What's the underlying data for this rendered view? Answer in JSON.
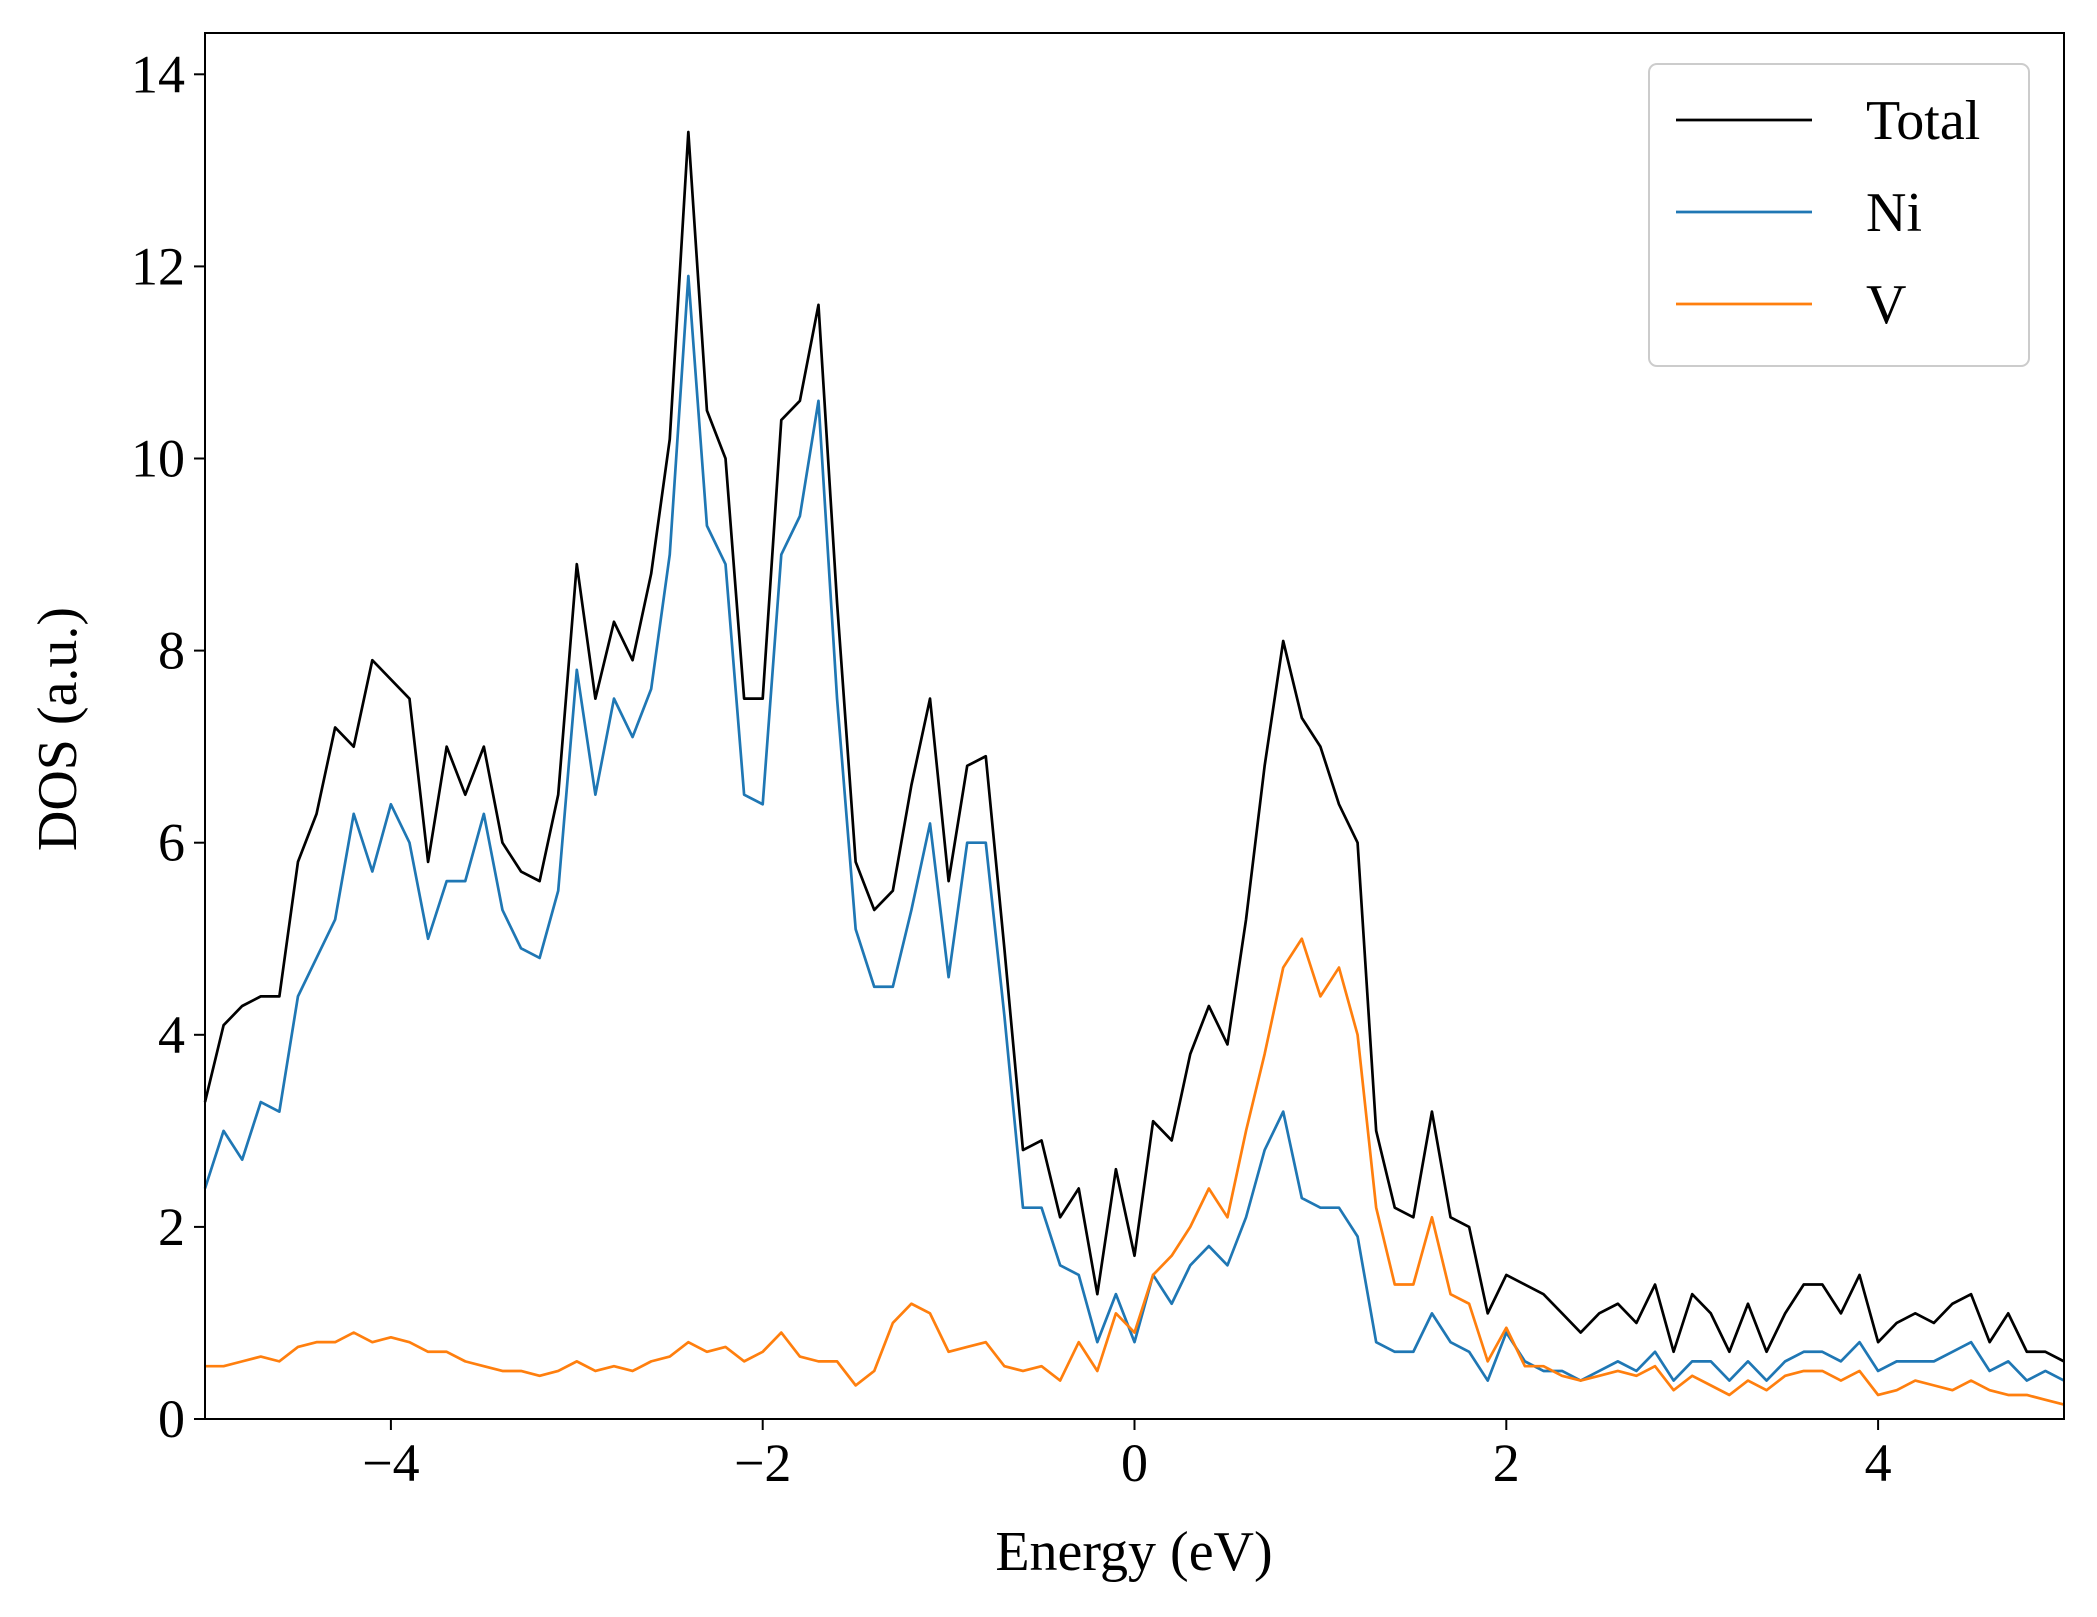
{
  "chart_data": {
    "type": "line",
    "xlabel": "Energy (eV)",
    "ylabel": "DOS (a.u.)",
    "x": [
      -5.0,
      -4.9,
      -4.8,
      -4.7,
      -4.6,
      -4.5,
      -4.4,
      -4.3,
      -4.2,
      -4.1,
      -4.0,
      -3.9,
      -3.8,
      -3.7,
      -3.6,
      -3.5,
      -3.4,
      -3.3,
      -3.2,
      -3.1,
      -3.0,
      -2.9,
      -2.8,
      -2.7,
      -2.6,
      -2.5,
      -2.4,
      -2.3,
      -2.2,
      -2.1,
      -2.0,
      -1.9,
      -1.8,
      -1.7,
      -1.6,
      -1.5,
      -1.4,
      -1.3,
      -1.2,
      -1.1,
      -1.0,
      -0.9,
      -0.8,
      -0.7,
      -0.6,
      -0.5,
      -0.4,
      -0.3,
      -0.2,
      -0.1,
      0.0,
      0.1,
      0.2,
      0.3,
      0.4,
      0.5,
      0.6,
      0.7,
      0.8,
      0.9,
      1.0,
      1.1,
      1.2,
      1.3,
      1.4,
      1.5,
      1.6,
      1.7,
      1.8,
      1.9,
      2.0,
      2.1,
      2.2,
      2.3,
      2.4,
      2.5,
      2.6,
      2.7,
      2.8,
      2.9,
      3.0,
      3.1,
      3.2,
      3.3,
      3.4,
      3.5,
      3.6,
      3.7,
      3.8,
      3.9,
      4.0,
      4.1,
      4.2,
      4.3,
      4.4,
      4.5,
      4.6,
      4.7,
      4.8,
      4.9,
      5.0
    ],
    "series": [
      {
        "name": "Total",
        "color": "#000000",
        "values": [
          3.3,
          4.1,
          4.3,
          4.4,
          4.4,
          5.8,
          6.3,
          7.2,
          7.0,
          7.9,
          7.7,
          7.5,
          5.8,
          7.0,
          6.5,
          7.0,
          6.0,
          5.7,
          5.6,
          6.5,
          8.9,
          7.5,
          8.3,
          7.9,
          8.8,
          10.2,
          13.4,
          10.5,
          10.0,
          7.5,
          7.5,
          10.4,
          10.6,
          11.6,
          8.5,
          5.8,
          5.3,
          5.5,
          6.6,
          7.5,
          5.6,
          6.8,
          6.9,
          4.9,
          2.8,
          2.9,
          2.1,
          2.4,
          1.3,
          2.6,
          1.7,
          3.1,
          2.9,
          3.8,
          4.3,
          3.9,
          5.2,
          6.8,
          8.1,
          7.3,
          7.0,
          6.4,
          6.0,
          3.0,
          2.2,
          2.1,
          3.2,
          2.1,
          2.0,
          1.1,
          1.5,
          1.4,
          1.3,
          1.1,
          0.9,
          1.1,
          1.2,
          1.0,
          1.4,
          0.7,
          1.3,
          1.1,
          0.7,
          1.2,
          0.7,
          1.1,
          1.4,
          1.4,
          1.1,
          1.5,
          0.8,
          1.0,
          1.1,
          1.0,
          1.2,
          1.3,
          0.8,
          1.1,
          0.7,
          0.7,
          0.6
        ]
      },
      {
        "name": "Ni",
        "color": "#1f77b4",
        "values": [
          2.4,
          3.0,
          2.7,
          3.3,
          3.2,
          4.4,
          4.8,
          5.2,
          6.3,
          5.7,
          6.4,
          6.0,
          5.0,
          5.6,
          5.6,
          6.3,
          5.3,
          4.9,
          4.8,
          5.5,
          7.8,
          6.5,
          7.5,
          7.1,
          7.6,
          9.0,
          11.9,
          9.3,
          8.9,
          6.5,
          6.4,
          9.0,
          9.4,
          10.6,
          7.5,
          5.1,
          4.5,
          4.5,
          5.3,
          6.2,
          4.6,
          6.0,
          6.0,
          4.2,
          2.2,
          2.2,
          1.6,
          1.5,
          0.8,
          1.3,
          0.8,
          1.5,
          1.2,
          1.6,
          1.8,
          1.6,
          2.1,
          2.8,
          3.2,
          2.3,
          2.2,
          2.2,
          1.9,
          0.8,
          0.7,
          0.7,
          1.1,
          0.8,
          0.7,
          0.4,
          0.9,
          0.6,
          0.5,
          0.5,
          0.4,
          0.5,
          0.6,
          0.5,
          0.7,
          0.4,
          0.6,
          0.6,
          0.4,
          0.6,
          0.4,
          0.6,
          0.7,
          0.7,
          0.6,
          0.8,
          0.5,
          0.6,
          0.6,
          0.6,
          0.7,
          0.8,
          0.5,
          0.6,
          0.4,
          0.5,
          0.4
        ]
      },
      {
        "name": "V",
        "color": "#ff7f0e",
        "values": [
          0.55,
          0.55,
          0.6,
          0.65,
          0.6,
          0.75,
          0.8,
          0.8,
          0.9,
          0.8,
          0.85,
          0.8,
          0.7,
          0.7,
          0.6,
          0.55,
          0.5,
          0.5,
          0.45,
          0.5,
          0.6,
          0.5,
          0.55,
          0.5,
          0.6,
          0.65,
          0.8,
          0.7,
          0.75,
          0.6,
          0.7,
          0.9,
          0.65,
          0.6,
          0.6,
          0.35,
          0.5,
          1.0,
          1.2,
          1.1,
          0.7,
          0.75,
          0.8,
          0.55,
          0.5,
          0.55,
          0.4,
          0.8,
          0.5,
          1.1,
          0.9,
          1.5,
          1.7,
          2.0,
          2.4,
          2.1,
          3.0,
          3.8,
          4.7,
          5.0,
          4.4,
          4.7,
          4.0,
          2.2,
          1.4,
          1.4,
          2.1,
          1.3,
          1.2,
          0.6,
          0.95,
          0.55,
          0.55,
          0.45,
          0.4,
          0.45,
          0.5,
          0.45,
          0.55,
          0.3,
          0.45,
          0.35,
          0.25,
          0.4,
          0.3,
          0.45,
          0.5,
          0.5,
          0.4,
          0.5,
          0.25,
          0.3,
          0.4,
          0.35,
          0.3,
          0.4,
          0.3,
          0.25,
          0.25,
          0.2,
          0.15
        ]
      }
    ],
    "xlim": [
      -5,
      5
    ],
    "ylim": [
      0,
      14.43
    ],
    "xticks": [
      {
        "value": -4,
        "label": "−4"
      },
      {
        "value": -2,
        "label": "−2"
      },
      0,
      2,
      4
    ],
    "yticks": [
      0,
      2,
      4,
      6,
      8,
      10,
      12,
      14
    ],
    "legend": "upper right",
    "grid": false
  }
}
